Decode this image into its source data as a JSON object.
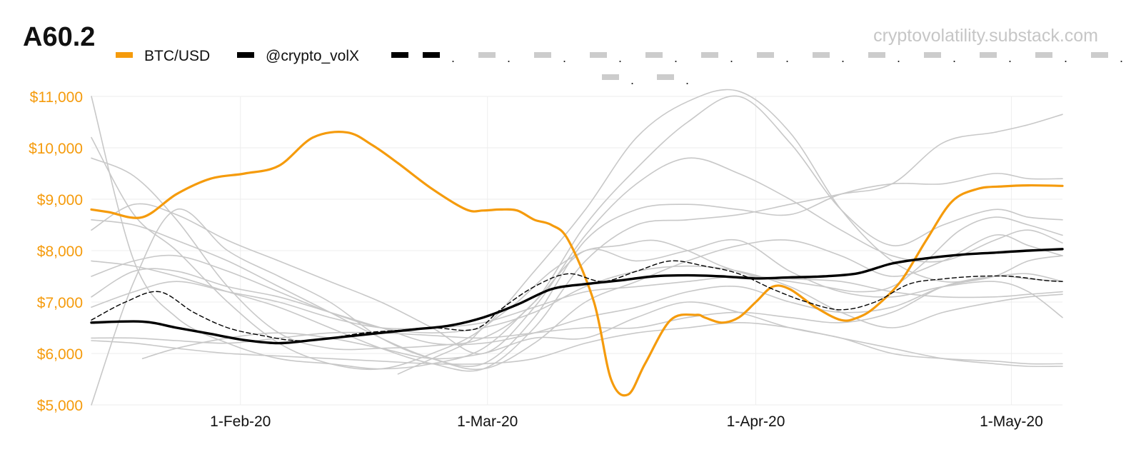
{
  "chart_data": {
    "type": "line",
    "title": "A60.2",
    "watermark": "cryptovolatility.substack.com",
    "xlabel": "",
    "ylabel": "",
    "ylim": [
      5000,
      11000
    ],
    "xlim": [
      0,
      114
    ],
    "y_ticks": [
      {
        "value": 11000,
        "label": "$11,000"
      },
      {
        "value": 10000,
        "label": "$10,000"
      },
      {
        "value": 9000,
        "label": "$9,000"
      },
      {
        "value": 8000,
        "label": "$8,000"
      },
      {
        "value": 7000,
        "label": "$7,000"
      },
      {
        "value": 6000,
        "label": "$6,000"
      },
      {
        "value": 5000,
        "label": "$5,000"
      }
    ],
    "x_ticks": [
      {
        "value": 17.5,
        "label": "1-Feb-20"
      },
      {
        "value": 46.5,
        "label": "1-Mar-20"
      },
      {
        "value": 78,
        "label": "1-Apr-20"
      },
      {
        "value": 108,
        "label": "1-May-20"
      }
    ],
    "legend": {
      "btc": "BTC/USD",
      "volx": "@crypto_volX",
      "dash_dots": [
        "."
      ]
    },
    "colors": {
      "btc": "#f59b0c",
      "volx": "#000000",
      "gray": "#c8c8c8",
      "dash": "#000000"
    },
    "series": [
      {
        "name": "BTC/USD",
        "role": "btc",
        "x": [
          0,
          2,
          6,
          10,
          14,
          18,
          22,
          26,
          30,
          33,
          36,
          40,
          44,
          46,
          48,
          50,
          52,
          54,
          56,
          59,
          61,
          63,
          65,
          68,
          71,
          72,
          74,
          76,
          78,
          80,
          82,
          85,
          88,
          90,
          92,
          95,
          98,
          101,
          104,
          107,
          110,
          114
        ],
        "values": [
          8800,
          8750,
          8650,
          9100,
          9400,
          9500,
          9650,
          10200,
          10300,
          10050,
          9700,
          9200,
          8800,
          8780,
          8800,
          8780,
          8600,
          8500,
          8200,
          7000,
          5500,
          5200,
          5800,
          6650,
          6750,
          6700,
          6600,
          6700,
          7000,
          7300,
          7250,
          6900,
          6650,
          6700,
          6900,
          7400,
          8200,
          8950,
          9200,
          9250,
          9270,
          9260
        ]
      },
      {
        "name": "@crypto_volX",
        "role": "volx",
        "x": [
          0,
          6,
          10,
          14,
          18,
          22,
          26,
          30,
          34,
          38,
          42,
          46,
          50,
          54,
          58,
          62,
          66,
          70,
          74,
          78,
          82,
          86,
          90,
          94,
          98,
          102,
          106,
          110,
          114
        ],
        "values": [
          6600,
          6620,
          6500,
          6380,
          6260,
          6200,
          6260,
          6330,
          6400,
          6470,
          6540,
          6700,
          6950,
          7250,
          7350,
          7420,
          7500,
          7520,
          7500,
          7460,
          7480,
          7500,
          7560,
          7750,
          7850,
          7920,
          7960,
          8000,
          8030
        ]
      },
      {
        "name": "dashed",
        "role": "dash",
        "x": [
          0,
          4,
          8,
          12,
          16,
          20,
          24,
          28,
          32,
          36,
          40,
          44,
          46,
          48,
          52,
          56,
          60,
          64,
          68,
          72,
          76,
          80,
          84,
          88,
          92,
          96,
          100,
          104,
          108,
          112,
          114
        ],
        "values": [
          6650,
          7000,
          7200,
          6800,
          6500,
          6350,
          6250,
          6300,
          6400,
          6450,
          6500,
          6450,
          6550,
          6850,
          7300,
          7550,
          7400,
          7600,
          7800,
          7700,
          7550,
          7250,
          7000,
          6850,
          7000,
          7350,
          7450,
          7500,
          7500,
          7420,
          7400
        ]
      },
      {
        "name": "g1",
        "role": "gray",
        "x": [
          0,
          5,
          10,
          16,
          22,
          28,
          34,
          40,
          46,
          52,
          58,
          64,
          70,
          76,
          82,
          88,
          94,
          100,
          106,
          110,
          114
        ],
        "values": [
          9800,
          9450,
          8600,
          7300,
          6400,
          6100,
          6100,
          6150,
          6300,
          7000,
          8500,
          9600,
          10500,
          11000,
          10100,
          8800,
          8100,
          8500,
          8800,
          8650,
          8600
        ]
      },
      {
        "name": "g2",
        "role": "gray",
        "x": [
          0,
          5,
          10,
          16,
          22,
          28,
          34,
          40,
          46,
          52,
          58,
          64,
          70,
          76,
          82,
          88,
          94,
          100,
          106,
          110,
          114
        ],
        "values": [
          10200,
          8700,
          8000,
          7000,
          6200,
          5800,
          5700,
          6000,
          6500,
          7600,
          8800,
          10200,
          10900,
          11100,
          10300,
          8800,
          7800,
          7400,
          7500,
          7550,
          7400
        ]
      },
      {
        "name": "g3",
        "role": "gray",
        "x": [
          0,
          5,
          10,
          16,
          22,
          28,
          34,
          40,
          46,
          52,
          58,
          64,
          70,
          76,
          82,
          88,
          94,
          100,
          106,
          110,
          114
        ],
        "values": [
          8400,
          8900,
          8700,
          8200,
          7800,
          7400,
          7000,
          6500,
          6000,
          6900,
          8300,
          9300,
          9800,
          9500,
          9000,
          8400,
          7900,
          7800,
          8200,
          8400,
          8150
        ]
      },
      {
        "name": "g4",
        "role": "gray",
        "x": [
          0,
          5,
          10,
          16,
          22,
          28,
          34,
          40,
          46,
          52,
          58,
          64,
          70,
          76,
          82,
          88,
          94,
          100,
          106,
          110,
          114
        ],
        "values": [
          5000,
          7400,
          8800,
          8000,
          7500,
          7000,
          6300,
          5900,
          5800,
          6700,
          8200,
          8800,
          8900,
          8800,
          8700,
          9100,
          9300,
          9300,
          9500,
          9400,
          9400
        ]
      },
      {
        "name": "g5",
        "role": "gray",
        "x": [
          0,
          5,
          10,
          16,
          22,
          28,
          34,
          40,
          46,
          52,
          58,
          64,
          70,
          76,
          82,
          88,
          94,
          100,
          106,
          110,
          114
        ],
        "values": [
          7800,
          7700,
          7500,
          7200,
          6900,
          6500,
          6100,
          5800,
          5700,
          6500,
          7800,
          8500,
          8600,
          8700,
          8900,
          9100,
          9300,
          10100,
          10300,
          10450,
          10650
        ]
      },
      {
        "name": "g6",
        "role": "gray",
        "x": [
          0,
          5,
          10,
          16,
          22,
          28,
          34,
          40,
          46,
          52,
          58,
          64,
          70,
          76,
          82,
          88,
          94,
          100,
          106,
          110,
          114
        ],
        "values": [
          11000,
          7800,
          6700,
          6200,
          5900,
          5800,
          5700,
          5800,
          6100,
          7000,
          8000,
          7800,
          8000,
          8200,
          7600,
          7200,
          7100,
          7300,
          7400,
          7200,
          6700
        ]
      },
      {
        "name": "g7",
        "role": "gray",
        "x": [
          0,
          5,
          10,
          16,
          22,
          28,
          34,
          40,
          46,
          52,
          58,
          64,
          70,
          76,
          82,
          88,
          94,
          100,
          106,
          110,
          114
        ],
        "values": [
          7100,
          7600,
          7600,
          7300,
          7100,
          6800,
          6500,
          6200,
          6200,
          6400,
          6700,
          6900,
          7200,
          7300,
          7000,
          6800,
          6900,
          7300,
          7500,
          7800,
          7900
        ]
      },
      {
        "name": "g8",
        "role": "gray",
        "x": [
          0,
          5,
          10,
          16,
          22,
          28,
          34,
          40,
          46,
          52,
          58,
          64,
          70,
          76,
          82,
          88,
          94,
          100,
          106,
          110,
          114
        ],
        "values": [
          6300,
          6300,
          6250,
          6200,
          6300,
          6400,
          6400,
          6350,
          6300,
          6400,
          6500,
          6500,
          6700,
          6800,
          6700,
          6600,
          6800,
          7300,
          7500,
          7450,
          7400
        ]
      },
      {
        "name": "g9",
        "role": "gray",
        "x": [
          0,
          5,
          10,
          16,
          22,
          28,
          34,
          40,
          46,
          52,
          58,
          64,
          70,
          76,
          82,
          88,
          94,
          100,
          106,
          110,
          114
        ],
        "values": [
          6250,
          6200,
          6100,
          6000,
          5950,
          5900,
          5850,
          5800,
          5800,
          5900,
          6200,
          6400,
          6500,
          6600,
          6500,
          6300,
          6100,
          5900,
          5800,
          5750,
          5750
        ]
      },
      {
        "name": "g10",
        "role": "gray",
        "x": [
          6,
          10,
          16,
          22,
          28,
          34,
          40,
          46,
          52,
          58,
          64,
          70,
          76,
          82,
          88,
          94,
          100,
          106,
          110,
          114
        ],
        "values": [
          5900,
          6100,
          6300,
          6400,
          6300,
          6100,
          5900,
          6000,
          6300,
          6300,
          6700,
          7000,
          6800,
          6500,
          6300,
          6000,
          5900,
          5850,
          5800,
          5800
        ]
      },
      {
        "name": "g11",
        "role": "gray",
        "x": [
          0,
          5,
          10,
          16,
          22,
          28,
          34,
          40,
          46,
          52,
          58,
          64,
          70,
          76,
          82,
          88,
          94,
          100,
          106,
          110,
          114
        ],
        "values": [
          6900,
          7200,
          7400,
          7200,
          7000,
          6700,
          6500,
          6500,
          6600,
          6900,
          7200,
          7300,
          7400,
          7500,
          7450,
          7400,
          7200,
          7100,
          7100,
          7150,
          7200
        ]
      },
      {
        "name": "g12",
        "role": "gray",
        "x": [
          0,
          5,
          10,
          16,
          22,
          28,
          34,
          40,
          46,
          52,
          58,
          64,
          70,
          76,
          82,
          88,
          94,
          100,
          106,
          110,
          114
        ],
        "values": [
          8600,
          8500,
          8200,
          7800,
          7300,
          6800,
          6300,
          5900,
          5700,
          6200,
          7000,
          7400,
          7800,
          8100,
          8200,
          7900,
          7500,
          7800,
          8300,
          8100,
          7900
        ]
      },
      {
        "name": "g13",
        "role": "gray",
        "x": [
          0,
          5,
          10,
          16,
          22,
          28,
          34,
          40,
          46,
          52,
          58,
          64,
          70,
          76,
          82,
          88,
          94,
          100,
          106,
          110,
          114
        ],
        "values": [
          7500,
          7800,
          7900,
          7600,
          7200,
          6800,
          6500,
          6400,
          6500,
          6800,
          7300,
          7600,
          7700,
          7600,
          7300,
          6800,
          6500,
          6800,
          7000,
          7100,
          7150
        ]
      },
      {
        "name": "g14",
        "role": "gray",
        "x": [
          36,
          40,
          44,
          46,
          50,
          54,
          58,
          62,
          66,
          70,
          74,
          78,
          82,
          86,
          90,
          94,
          98,
          102,
          106,
          110,
          114
        ],
        "values": [
          5600,
          5900,
          6200,
          6500,
          7000,
          7600,
          8000,
          8100,
          8200,
          8000,
          7700,
          7500,
          7400,
          7300,
          7200,
          7300,
          7800,
          8400,
          8650,
          8500,
          8300
        ]
      }
    ]
  }
}
